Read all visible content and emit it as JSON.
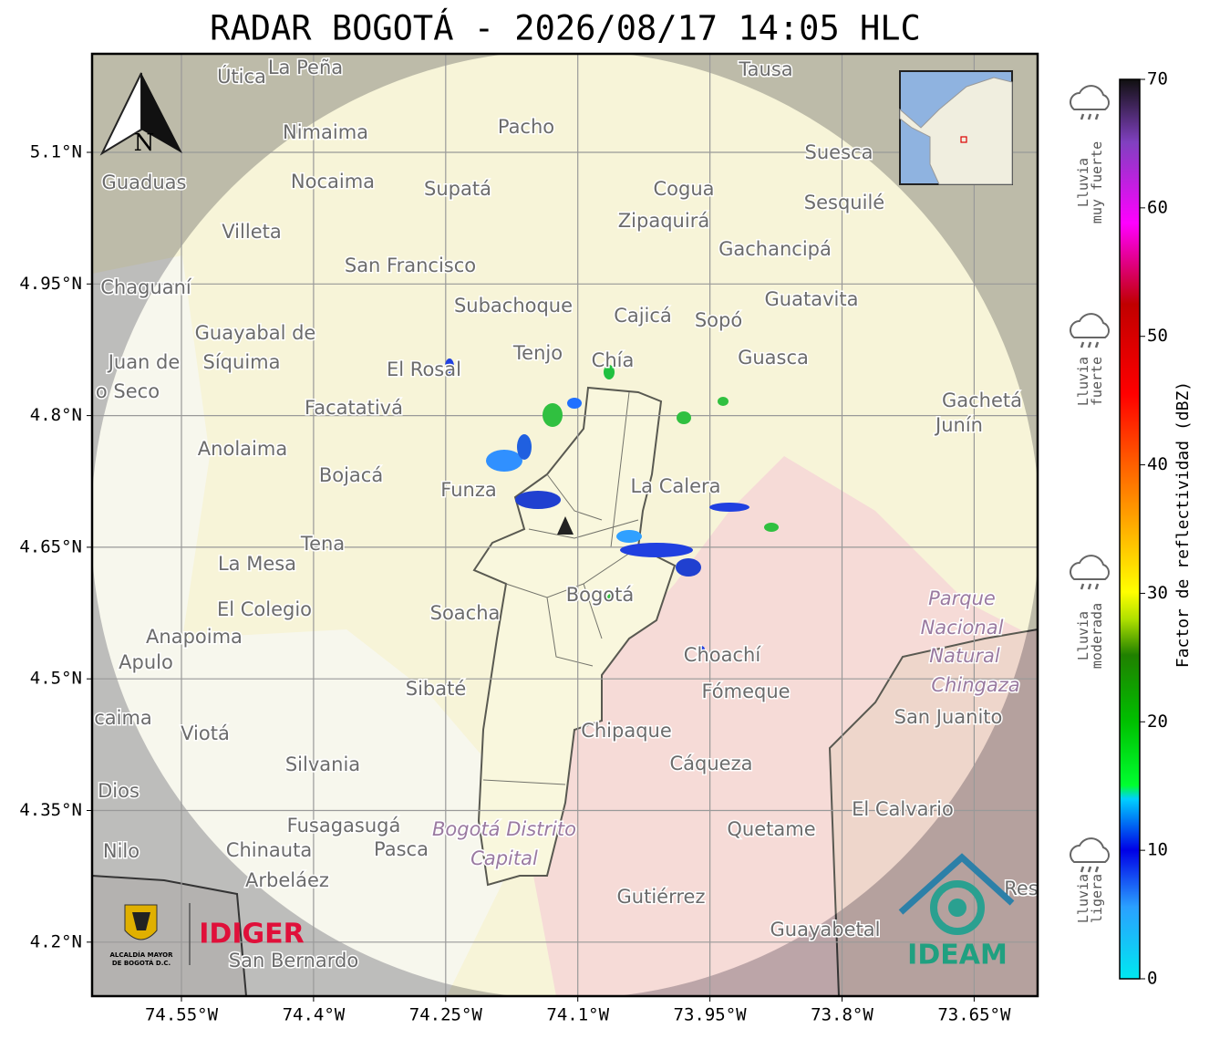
{
  "title": "RADAR BOGOTÁ - 2026/08/17 14:05 HLC",
  "map": {
    "lat_ticks": [
      {
        "value": 5.1,
        "label": "5.1°N"
      },
      {
        "value": 4.95,
        "label": "4.95°N"
      },
      {
        "value": 4.8,
        "label": "4.8°N"
      },
      {
        "value": 4.65,
        "label": "4.65°N"
      },
      {
        "value": 4.5,
        "label": "4.5°N"
      },
      {
        "value": 4.35,
        "label": "4.35°N"
      },
      {
        "value": 4.2,
        "label": "4.2°N"
      }
    ],
    "lon_ticks": [
      {
        "value": -74.55,
        "label": "74.55°W"
      },
      {
        "value": -74.4,
        "label": "74.4°W"
      },
      {
        "value": -74.25,
        "label": "74.25°W"
      },
      {
        "value": -74.1,
        "label": "74.1°W"
      },
      {
        "value": -73.95,
        "label": "73.95°W"
      },
      {
        "value": -73.8,
        "label": "73.8°W"
      },
      {
        "value": -73.65,
        "label": "73.65°W"
      }
    ],
    "north": "N",
    "places": [
      "Útica",
      "La Peña",
      "Tausa",
      "Pacho",
      "Nimaima",
      "Guaduas",
      "Nocaima",
      "Supatá",
      "Cogua",
      "Suesca",
      "Sesquilé",
      "Zipaquirá",
      "Villeta",
      "Gachancipá",
      "San Francisco",
      "Chaguaní",
      "Guatavita",
      "Subachoque",
      "Cajicá",
      "Sopó",
      "Guayabal de",
      "Síquima",
      "Juan de",
      "Tenjo",
      "Chía",
      "Guasca",
      "El Rosal",
      "o Seco",
      "Facatativá",
      "Gachetá",
      "Junín",
      "Anolaima",
      "Bojacá",
      "Funza",
      "La Calera",
      "Tena",
      "La Mesa",
      "Bogotá",
      "El Colegio",
      "Soacha",
      "Anapoima",
      "Apulo",
      "Choachí",
      "Fómeque",
      "Sibaté",
      "San Juanito",
      "caima",
      "Viotá",
      "Chipaque",
      "Silvania",
      "Cáqueza",
      "Dios",
      "El Calvario",
      "Fusagasugá",
      "Quetame",
      "Nilo",
      "Chinauta",
      "Pasca",
      "Arbeláez",
      "Gutiérrez",
      "Res",
      "Guayabetal",
      "San Bernardo"
    ],
    "protected_area": [
      "Parque",
      "Nacional",
      "Natural",
      "Chingaza"
    ],
    "district": [
      "Bogotá Distrito",
      "Capital"
    ],
    "logos": {
      "alcaldia": [
        "ALCALDÍA MAYOR",
        "DE BOGOTÁ D.C."
      ],
      "idiger": "IDIGER",
      "ideam": "IDEAM"
    }
  },
  "colorbar": {
    "label": "Factor de reflectividad (dBZ)",
    "range": [
      0,
      70
    ],
    "ticks": [
      0,
      10,
      20,
      30,
      40,
      50,
      60,
      70
    ]
  },
  "intensity": [
    [
      "Lluvia",
      "muy fuerte"
    ],
    [
      "Lluvia",
      "fuerte"
    ],
    [
      "Lluvia",
      "moderada"
    ],
    [
      "Lluvia",
      "ligera"
    ]
  ]
}
